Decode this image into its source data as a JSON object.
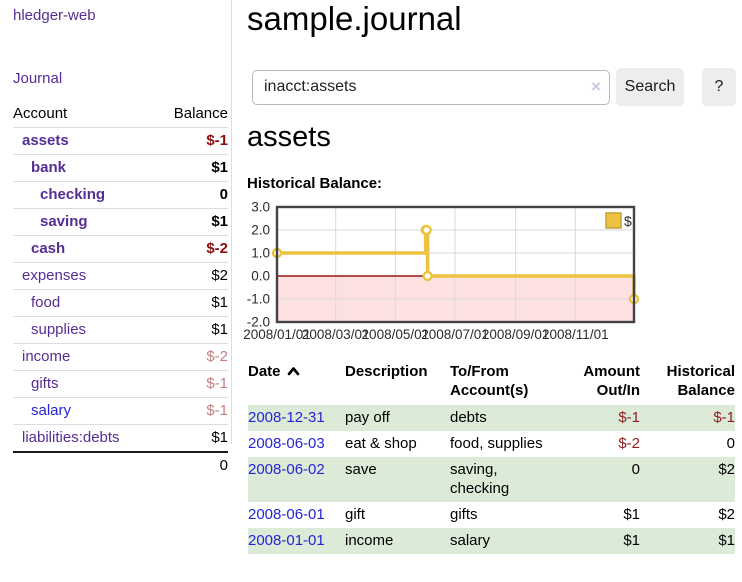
{
  "app": {
    "brand": "hledger-web",
    "nav_journal": "Journal",
    "page_title": "sample.journal"
  },
  "search": {
    "value": "inacct:assets",
    "clear_label": "×",
    "button_label": "Search",
    "help_label": "?"
  },
  "sidebar": {
    "header": {
      "account": "Account",
      "balance": "Balance"
    },
    "rows": [
      {
        "account": "assets",
        "balance": "$-1",
        "depth": 1,
        "bold": true,
        "balance_class": "neg-strong"
      },
      {
        "account": "bank",
        "balance": "$1",
        "depth": 2,
        "bold": true,
        "balance_class": ""
      },
      {
        "account": "checking",
        "balance": "0",
        "depth": 3,
        "bold": true,
        "balance_class": ""
      },
      {
        "account": "saving",
        "balance": "$1",
        "depth": 3,
        "bold": true,
        "balance_class": ""
      },
      {
        "account": "cash",
        "balance": "$-2",
        "depth": 2,
        "bold": true,
        "balance_class": "neg-strong"
      },
      {
        "account": "expenses",
        "balance": "$2",
        "depth": 1,
        "bold": false,
        "balance_class": ""
      },
      {
        "account": "food",
        "balance": "$1",
        "depth": 2,
        "bold": false,
        "balance_class": ""
      },
      {
        "account": "supplies",
        "balance": "$1",
        "depth": 2,
        "bold": false,
        "balance_class": ""
      },
      {
        "account": "income",
        "balance": "$-2",
        "depth": 1,
        "bold": false,
        "balance_class": "neg-muted"
      },
      {
        "account": "gifts",
        "balance": "$-1",
        "depth": 2,
        "bold": false,
        "balance_class": "neg-muted"
      },
      {
        "account": "salary",
        "balance": "$-1",
        "depth": 2,
        "bold": false,
        "balance_class": "neg-muted",
        "link_class": "blue"
      },
      {
        "account": "liabilities:debts",
        "balance": "$1",
        "depth": 1,
        "bold": false,
        "balance_class": "",
        "last": true
      }
    ],
    "total": "0"
  },
  "account_section": {
    "heading": "assets",
    "chart_label": "Historical Balance:"
  },
  "chart_data": {
    "type": "line",
    "step": true,
    "title": "Historical Balance:",
    "xlabel": "",
    "ylabel": "",
    "x_start": "2008-01-01",
    "x_end": "2008-12-31",
    "ylim": [
      -2,
      3
    ],
    "yticks": [
      "3.0",
      "2.0",
      "1.0",
      "0.0",
      "-1.0",
      "-2.0"
    ],
    "ytick_values": [
      3,
      2,
      1,
      0,
      -1,
      -2
    ],
    "xticks": [
      "2008/01/01",
      "2008/03/01",
      "2008/05/01",
      "2008/07/01",
      "2008/09/01",
      "2008/11/01"
    ],
    "legend": {
      "label": "$",
      "position": "top-right"
    },
    "grid": true,
    "series": [
      {
        "name": "$",
        "color": "#edc240",
        "points": [
          [
            "2008-01-01",
            1
          ],
          [
            "2008-06-01",
            2
          ],
          [
            "2008-06-02",
            2
          ],
          [
            "2008-06-03",
            0
          ],
          [
            "2008-12-31",
            -1
          ]
        ]
      }
    ],
    "negative_region_color": "#fde1e1",
    "zero_line_color": "#991414"
  },
  "register": {
    "columns": {
      "date": "Date",
      "description": "Description",
      "accounts": "To/From Account(s)",
      "amount": "Amount Out/In",
      "balance": "Historical Balance"
    },
    "sort": {
      "column": "date",
      "direction": "asc"
    },
    "rows": [
      {
        "date": "2008-12-31",
        "description": "pay off",
        "accounts": "debts",
        "amount": "$-1",
        "balance": "$-1",
        "amount_neg": true,
        "balance_neg": true
      },
      {
        "date": "2008-06-03",
        "description": "eat & shop",
        "accounts": "food, supplies",
        "amount": "$-2",
        "balance": "0",
        "amount_neg": true,
        "balance_neg": false
      },
      {
        "date": "2008-06-02",
        "description": "save",
        "accounts": "saving, checking",
        "amount": "0",
        "balance": "$2",
        "amount_neg": false,
        "balance_neg": false
      },
      {
        "date": "2008-06-01",
        "description": "gift",
        "accounts": "gifts",
        "amount": "$1",
        "balance": "$2",
        "amount_neg": false,
        "balance_neg": false
      },
      {
        "date": "2008-01-01",
        "description": "income",
        "accounts": "salary",
        "amount": "$1",
        "balance": "$1",
        "amount_neg": false,
        "balance_neg": false
      }
    ]
  },
  "colors": {
    "accent_purple": "#552d94",
    "link_blue": "#2525d5",
    "negative": "#8f1d1d",
    "negative_muted": "#c28080",
    "zebra_green": "#dcead8",
    "chart_gold": "#edc240",
    "negative_region": "#fde1e1",
    "button_bg": "#ededed"
  }
}
